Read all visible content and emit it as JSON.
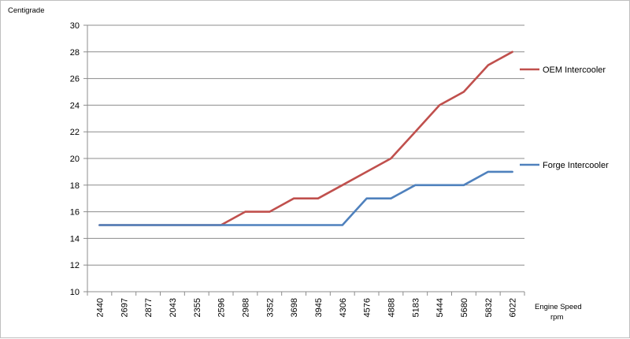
{
  "chart_data": {
    "type": "line",
    "title": "",
    "ylabel": "Centigrade",
    "xlabel_line1": "Engine Speed",
    "xlabel_line2": "rpm",
    "ylim": [
      10,
      30
    ],
    "y_ticks": [
      10,
      12,
      14,
      16,
      18,
      20,
      22,
      24,
      26,
      28,
      30
    ],
    "grid": "horizontal",
    "legend_placement": "right",
    "categories": [
      "2440",
      "2697",
      "2877",
      "2043",
      "2355",
      "2596",
      "2988",
      "3352",
      "3698",
      "3945",
      "4306",
      "4576",
      "4888",
      "5183",
      "5444",
      "5680",
      "5832",
      "6022"
    ],
    "series": [
      {
        "name": "OEM Intercooler",
        "color": "#c0504d",
        "values": [
          15,
          15,
          15,
          15,
          15,
          15,
          16,
          16,
          17,
          17,
          18,
          19,
          20,
          22,
          24,
          25,
          27,
          28
        ]
      },
      {
        "name": "Forge Intercooler",
        "color": "#4f81bd",
        "values": [
          15,
          15,
          15,
          15,
          15,
          15,
          15,
          15,
          15,
          15,
          15,
          17,
          17,
          18,
          18,
          18,
          19,
          19
        ]
      }
    ]
  }
}
